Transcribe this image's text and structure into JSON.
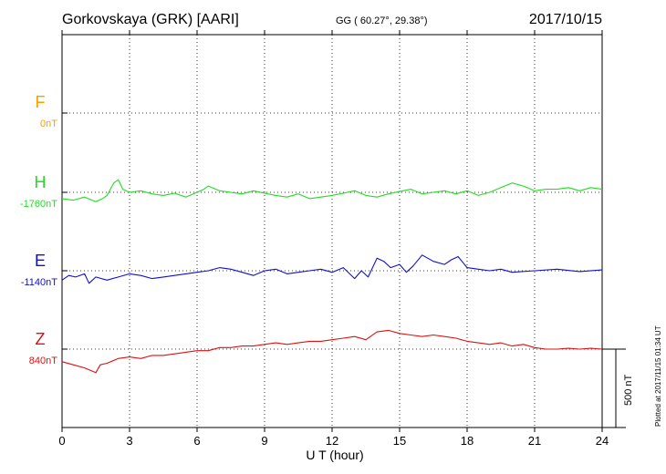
{
  "header": {
    "station": "Gorkovskaya (GRK)  [AARI]",
    "coords": "GG ( 60.27°,  29.38°)",
    "date": "2017/10/15"
  },
  "footer_note": "Plotted at 2017/11/15 01:34 UT",
  "chart_data": {
    "type": "line",
    "title": "Gorkovskaya (GRK)  [AARI]",
    "xlabel": "U T (hour)",
    "ylabel": "",
    "xlim": [
      0,
      24
    ],
    "x_ticks": [
      "0",
      "3",
      "6",
      "9",
      "12",
      "15",
      "18",
      "21",
      "24"
    ],
    "grid": true,
    "scale_bar": {
      "label": "500 nT",
      "value_nT": 500
    },
    "series": [
      {
        "name": "F",
        "baseline_label": "0nT",
        "color": "#f5a000",
        "x": [],
        "values": []
      },
      {
        "name": "H",
        "baseline_label": "-1760nT",
        "color": "#22dd22",
        "x": [
          0,
          0.5,
          1,
          1.5,
          1.8,
          2,
          2.3,
          2.5,
          2.7,
          3,
          3.5,
          4,
          4.5,
          5,
          5.5,
          6,
          6.3,
          6.5,
          7,
          7.5,
          8,
          8.5,
          9,
          9.5,
          10,
          10.5,
          11,
          11.5,
          12,
          12.5,
          13,
          13.5,
          14,
          14.5,
          15,
          15.5,
          16,
          16.5,
          17,
          17.5,
          18,
          18.5,
          19,
          19.5,
          20,
          20.5,
          21,
          21.5,
          22,
          22.5,
          23,
          23.5,
          24
        ],
        "values": [
          -40,
          -50,
          -30,
          -60,
          -40,
          -20,
          60,
          80,
          20,
          0,
          10,
          -10,
          -20,
          -5,
          -30,
          0,
          20,
          40,
          10,
          0,
          -10,
          10,
          -5,
          -20,
          -30,
          -10,
          -40,
          -30,
          -20,
          -5,
          10,
          -20,
          -30,
          -10,
          5,
          20,
          -10,
          0,
          10,
          -10,
          10,
          -20,
          0,
          30,
          60,
          40,
          10,
          20,
          20,
          30,
          10,
          30,
          20
        ]
      },
      {
        "name": "E",
        "baseline_label": "-1140nT",
        "color": "#1010cc",
        "x": [
          0,
          0.3,
          0.6,
          1,
          1.2,
          1.5,
          2,
          2.5,
          3,
          3.5,
          4,
          4.5,
          5,
          5.5,
          6,
          6.5,
          7,
          7.5,
          8,
          8.5,
          9,
          9.5,
          10,
          10.5,
          11,
          11.5,
          12,
          12.5,
          13,
          13.3,
          13.6,
          14,
          14.3,
          14.6,
          15,
          15.3,
          15.6,
          16,
          16.5,
          17,
          17.3,
          17.6,
          18,
          18.5,
          19,
          19.5,
          20,
          21,
          22,
          23,
          24
        ],
        "values": [
          -60,
          -30,
          -40,
          -20,
          -80,
          -40,
          -60,
          -40,
          -20,
          -30,
          -50,
          -40,
          -30,
          -20,
          -10,
          0,
          20,
          10,
          -10,
          -30,
          0,
          10,
          -20,
          -10,
          0,
          10,
          -10,
          20,
          -50,
          0,
          -40,
          80,
          60,
          20,
          40,
          -10,
          30,
          100,
          60,
          40,
          70,
          90,
          20,
          10,
          0,
          10,
          -10,
          0,
          10,
          -5,
          5
        ]
      },
      {
        "name": "Z",
        "baseline_label": "840nT",
        "color": "#dd1111",
        "x": [
          0,
          0.5,
          1,
          1.5,
          1.7,
          2,
          2.5,
          3,
          3.5,
          4,
          4.5,
          5,
          5.5,
          6,
          6.5,
          7,
          7.5,
          8,
          8.5,
          9,
          9.5,
          10,
          10.5,
          11,
          11.5,
          12,
          12.5,
          13,
          13.5,
          14,
          14.5,
          15,
          15.5,
          16,
          16.5,
          17,
          17.5,
          18,
          18.5,
          19,
          19.5,
          20,
          20.5,
          21,
          21.5,
          22,
          22.5,
          23,
          23.5,
          24
        ],
        "values": [
          -80,
          -100,
          -120,
          -150,
          -100,
          -90,
          -60,
          -50,
          -60,
          -40,
          -40,
          -30,
          -20,
          -10,
          -10,
          10,
          10,
          20,
          20,
          30,
          40,
          30,
          40,
          50,
          50,
          60,
          70,
          80,
          60,
          110,
          120,
          100,
          90,
          80,
          90,
          80,
          70,
          50,
          40,
          30,
          40,
          20,
          30,
          10,
          0,
          0,
          5,
          0,
          5,
          0
        ]
      }
    ]
  }
}
